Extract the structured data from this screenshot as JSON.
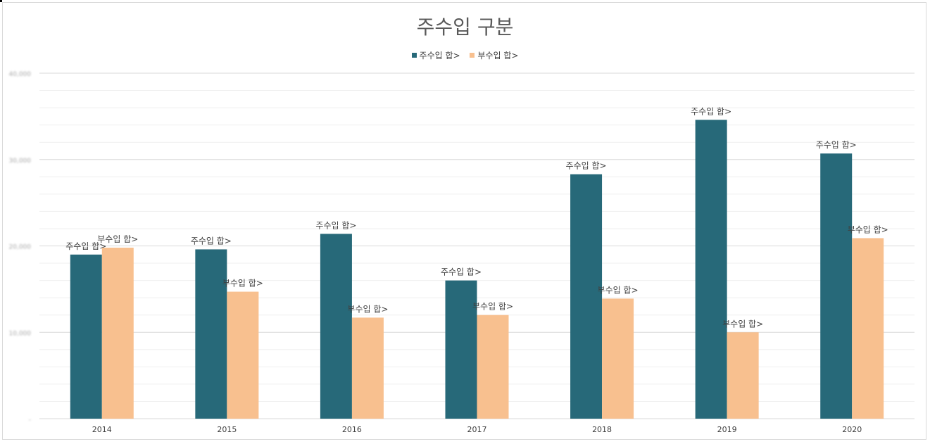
{
  "chart_data": {
    "type": "bar",
    "title": "주수입 구분",
    "categories": [
      "2014",
      "2015",
      "2016",
      "2017",
      "2018",
      "2019",
      "2020"
    ],
    "series": [
      {
        "name": "주수입 합>",
        "color": "#276979",
        "values": [
          19000,
          19600,
          21400,
          16000,
          28300,
          34600,
          30700
        ]
      },
      {
        "name": "부수입 합>",
        "color": "#F8C08F",
        "values": [
          19800,
          14700,
          11700,
          12000,
          13900,
          10000,
          20900
        ]
      }
    ],
    "ylim": [
      0,
      40000
    ],
    "y_ticks": [
      "-",
      "10,000",
      "20,000",
      "30,000",
      "40,000"
    ],
    "data_label_text": [
      "주수입 합>",
      "부수입 합>"
    ],
    "grid": true,
    "legend": "top"
  }
}
